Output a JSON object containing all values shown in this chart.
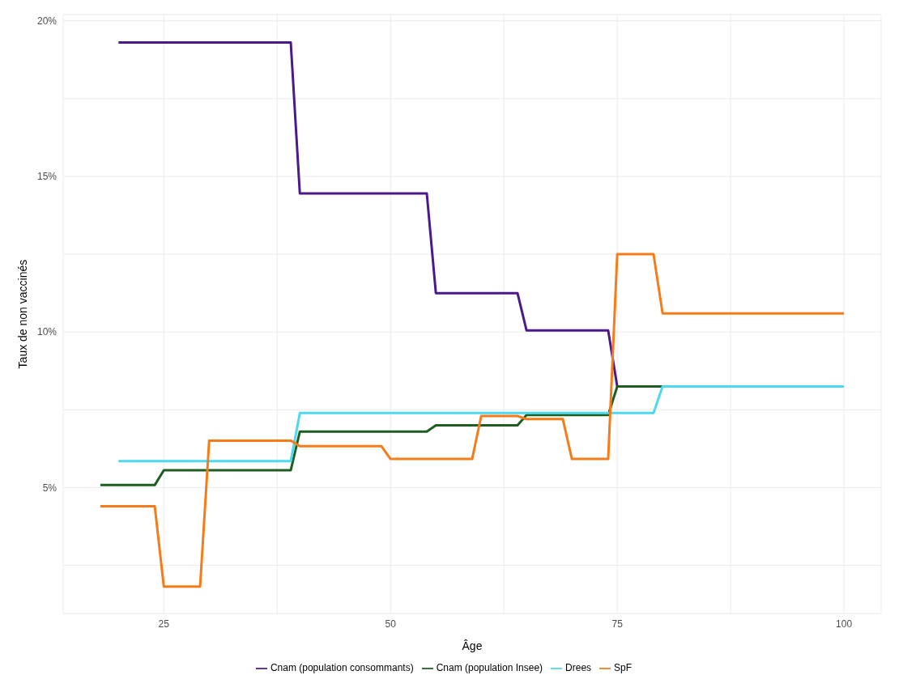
{
  "chart_data": {
    "type": "line",
    "xlabel": "Âge",
    "ylabel": "Taux de non vaccinés",
    "xlim": [
      13.9,
      104.1
    ],
    "ylim": [
      0.95,
      20.2
    ],
    "xticks": [
      25,
      {
        "value": 37.5,
        "label": null
      },
      50,
      {
        "value": 62.5,
        "label": null
      },
      75,
      {
        "value": 87.5,
        "label": null
      },
      100
    ],
    "yticks": [
      {
        "value": 2.5,
        "label": null
      },
      {
        "value": 5,
        "label": "5%"
      },
      {
        "value": 7.5,
        "label": null
      },
      {
        "value": 10,
        "label": "10%"
      },
      {
        "value": 12.5,
        "label": null
      },
      {
        "value": 15,
        "label": "15%"
      },
      {
        "value": 17.5,
        "label": null
      },
      {
        "value": 20,
        "label": "20%"
      }
    ],
    "grid": true,
    "legend": "bottom",
    "line_style": "solid",
    "marker": "none",
    "series": [
      {
        "name": "Cnam (population consommants)",
        "color": "#4b1a8a",
        "x": [
          20,
          39,
          40,
          54,
          55,
          64,
          65,
          74,
          75
        ],
        "values": [
          19.3,
          19.3,
          14.45,
          14.45,
          11.25,
          11.25,
          10.05,
          10.05,
          8.25
        ]
      },
      {
        "name": "Cnam (population Insee)",
        "color": "#1e5e20",
        "x": [
          18,
          24,
          25,
          39,
          40,
          54,
          55,
          64,
          65,
          74,
          75,
          80
        ],
        "values": [
          5.08,
          5.08,
          5.56,
          5.56,
          6.8,
          6.8,
          7.0,
          7.0,
          7.33,
          7.33,
          8.25,
          8.25
        ]
      },
      {
        "name": "Drees",
        "color": "#4dd9f0",
        "x": [
          20,
          39,
          40,
          79,
          80,
          100
        ],
        "values": [
          5.85,
          5.85,
          7.4,
          7.4,
          8.25,
          8.25
        ]
      },
      {
        "name": "SpF",
        "color": "#f57c1a",
        "x": [
          18,
          24,
          25,
          29,
          30,
          39,
          40,
          49,
          50,
          59,
          60,
          64,
          65,
          69,
          70,
          74,
          75,
          79,
          80,
          100
        ],
        "values": [
          4.4,
          4.4,
          1.82,
          1.82,
          6.51,
          6.51,
          6.33,
          6.33,
          5.92,
          5.92,
          7.3,
          7.3,
          7.2,
          7.2,
          5.92,
          5.92,
          12.5,
          12.5,
          10.6,
          10.6
        ]
      }
    ]
  }
}
